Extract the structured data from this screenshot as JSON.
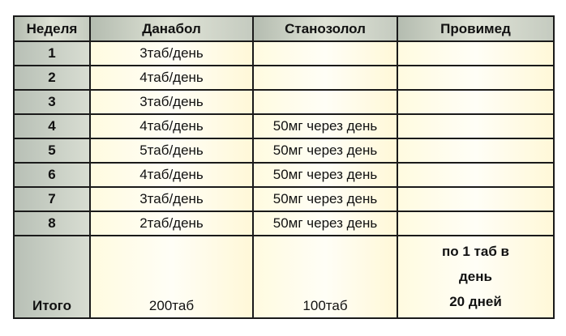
{
  "headers": [
    "Неделя",
    "Данабол",
    "Станозолол",
    "Провимед"
  ],
  "rows": [
    {
      "week": "1",
      "danabol": "3таб/день",
      "stanozolol": "",
      "provimed": ""
    },
    {
      "week": "2",
      "danabol": "4таб/день",
      "stanozolol": "",
      "provimed": ""
    },
    {
      "week": "3",
      "danabol": "3таб/день",
      "stanozolol": "",
      "provimed": ""
    },
    {
      "week": "4",
      "danabol": "4таб/день",
      "stanozolol": "50мг через день",
      "provimed": ""
    },
    {
      "week": "5",
      "danabol": "5таб/день",
      "stanozolol": "50мг через день",
      "provimed": ""
    },
    {
      "week": "6",
      "danabol": "4таб/день",
      "stanozolol": "50мг через день",
      "provimed": ""
    },
    {
      "week": "7",
      "danabol": "3таб/день",
      "stanozolol": "50мг через день",
      "provimed": ""
    },
    {
      "week": "8",
      "danabol": "2таб/день",
      "stanozolol": "50мг через день",
      "provimed": ""
    }
  ],
  "total": {
    "label": "Итого",
    "danabol": "200таб",
    "stanozolol": "100таб",
    "provimed_line1": "по 1 таб в",
    "provimed_line2": "день",
    "provimed_line3": "20 дней"
  }
}
